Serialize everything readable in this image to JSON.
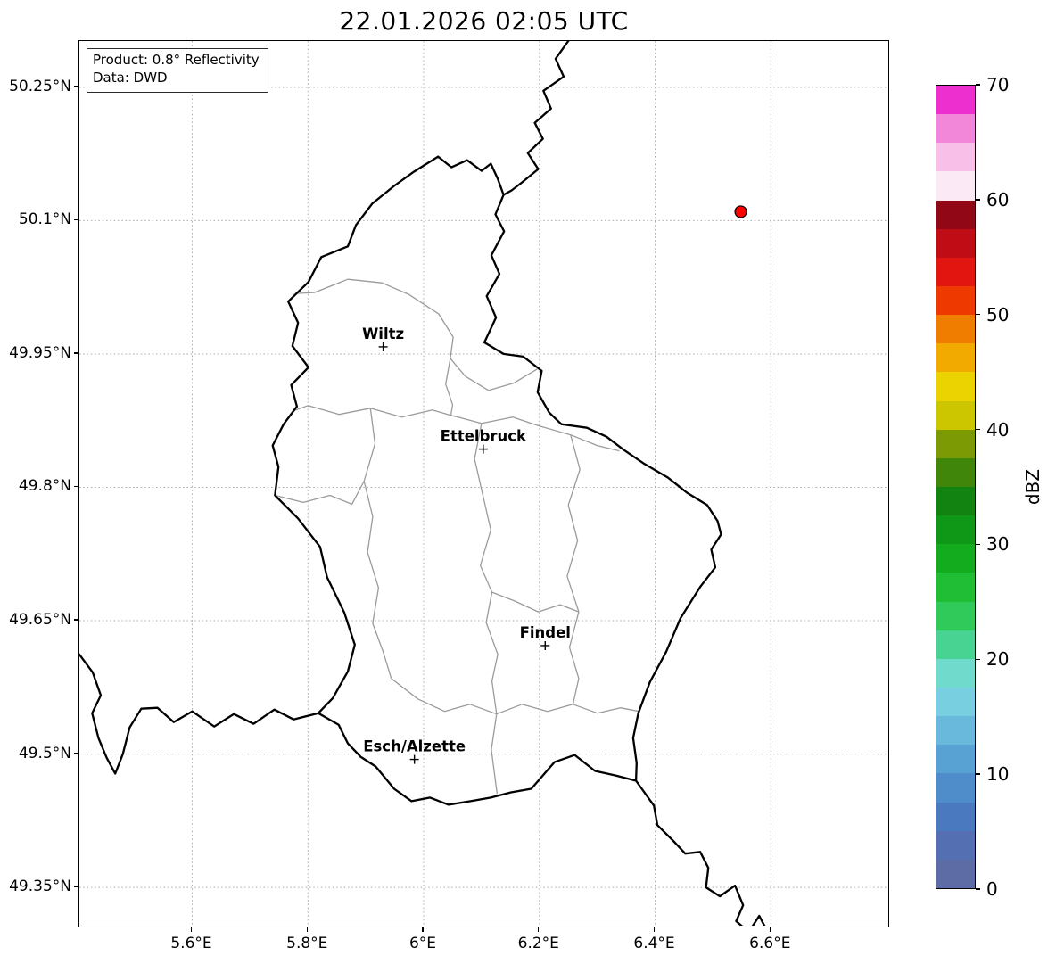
{
  "title": "22.01.2026 02:05 UTC",
  "legend": {
    "product": "Product: 0.8° Reflectivity",
    "source": "Data: DWD"
  },
  "axes": {
    "extent": {
      "lon_min": 5.405,
      "lon_max": 6.803,
      "lat_min": 49.307,
      "lat_max": 50.302
    },
    "x_ticks": [
      {
        "value": 5.6,
        "label": "5.6°E"
      },
      {
        "value": 5.8,
        "label": "5.8°E"
      },
      {
        "value": 6.0,
        "label": "6°E"
      },
      {
        "value": 6.2,
        "label": "6.2°E"
      },
      {
        "value": 6.4,
        "label": "6.4°E"
      },
      {
        "value": 6.6,
        "label": "6.6°E"
      }
    ],
    "y_ticks": [
      {
        "value": 50.25,
        "label": "50.25°N"
      },
      {
        "value": 50.1,
        "label": "50.1°N"
      },
      {
        "value": 49.95,
        "label": "49.95°N"
      },
      {
        "value": 49.8,
        "label": "49.8°N"
      },
      {
        "value": 49.65,
        "label": "49.65°N"
      },
      {
        "value": 49.5,
        "label": "49.5°N"
      },
      {
        "value": 49.35,
        "label": "49.35°N"
      }
    ]
  },
  "map": {
    "cities": [
      {
        "name": "Wiltz",
        "lon": 5.93,
        "lat": 49.958
      },
      {
        "name": "Ettelbruck",
        "lon": 6.103,
        "lat": 49.843
      },
      {
        "name": "Findel",
        "lon": 6.21,
        "lat": 49.622
      },
      {
        "name": "Esch/Alzette",
        "lon": 5.984,
        "lat": 49.494
      }
    ],
    "radar_marker": {
      "lon": 6.548,
      "lat": 50.11,
      "color": "#ff0000"
    },
    "country_borders": [
      {
        "name": "luxembourg",
        "closed": true,
        "points": [
          [
            6.025,
            50.172
          ],
          [
            6.048,
            50.16
          ],
          [
            6.075,
            50.168
          ],
          [
            6.1,
            50.156
          ],
          [
            6.116,
            50.164
          ],
          [
            6.128,
            50.147
          ],
          [
            6.138,
            50.129
          ],
          [
            6.124,
            50.107
          ],
          [
            6.139,
            50.088
          ],
          [
            6.117,
            50.061
          ],
          [
            6.131,
            50.04
          ],
          [
            6.109,
            50.015
          ],
          [
            6.125,
            49.991
          ],
          [
            6.105,
            49.963
          ],
          [
            6.138,
            49.95
          ],
          [
            6.172,
            49.947
          ],
          [
            6.204,
            49.931
          ],
          [
            6.197,
            49.907
          ],
          [
            6.217,
            49.884
          ],
          [
            6.238,
            49.871
          ],
          [
            6.282,
            49.867
          ],
          [
            6.316,
            49.857
          ],
          [
            6.346,
            49.842
          ],
          [
            6.38,
            49.827
          ],
          [
            6.422,
            49.811
          ],
          [
            6.455,
            49.794
          ],
          [
            6.49,
            49.78
          ],
          [
            6.508,
            49.762
          ],
          [
            6.514,
            49.747
          ],
          [
            6.497,
            49.73
          ],
          [
            6.504,
            49.71
          ],
          [
            6.478,
            49.688
          ],
          [
            6.444,
            49.653
          ],
          [
            6.419,
            49.615
          ],
          [
            6.391,
            49.581
          ],
          [
            6.371,
            49.546
          ],
          [
            6.362,
            49.518
          ],
          [
            6.368,
            49.49
          ],
          [
            6.367,
            49.47
          ],
          [
            6.331,
            49.476
          ],
          [
            6.296,
            49.481
          ],
          [
            6.261,
            49.499
          ],
          [
            6.226,
            49.491
          ],
          [
            6.186,
            49.461
          ],
          [
            6.151,
            49.457
          ],
          [
            6.116,
            49.451
          ],
          [
            6.081,
            49.447
          ],
          [
            6.043,
            49.443
          ],
          [
            6.011,
            49.451
          ],
          [
            5.979,
            49.447
          ],
          [
            5.949,
            49.461
          ],
          [
            5.917,
            49.486
          ],
          [
            5.891,
            49.497
          ],
          [
            5.869,
            49.512
          ],
          [
            5.853,
            49.533
          ],
          [
            5.818,
            49.546
          ],
          [
            5.843,
            49.563
          ],
          [
            5.869,
            49.593
          ],
          [
            5.881,
            49.623
          ],
          [
            5.863,
            49.659
          ],
          [
            5.833,
            49.699
          ],
          [
            5.821,
            49.733
          ],
          [
            5.783,
            49.765
          ],
          [
            5.743,
            49.791
          ],
          [
            5.749,
            49.823
          ],
          [
            5.739,
            49.847
          ],
          [
            5.758,
            49.871
          ],
          [
            5.781,
            49.891
          ],
          [
            5.771,
            49.915
          ],
          [
            5.801,
            49.935
          ],
          [
            5.773,
            49.959
          ],
          [
            5.783,
            49.985
          ],
          [
            5.766,
            50.009
          ],
          [
            5.801,
            50.031
          ],
          [
            5.823,
            50.059
          ],
          [
            5.869,
            50.071
          ],
          [
            5.883,
            50.095
          ],
          [
            5.911,
            50.119
          ],
          [
            5.949,
            50.139
          ],
          [
            5.983,
            50.155
          ]
        ]
      },
      {
        "name": "germany-belgium",
        "closed": false,
        "points": [
          [
            6.25,
            50.302
          ],
          [
            6.228,
            50.282
          ],
          [
            6.242,
            50.262
          ],
          [
            6.207,
            50.246
          ],
          [
            6.22,
            50.226
          ],
          [
            6.192,
            50.21
          ],
          [
            6.206,
            50.192
          ],
          [
            6.18,
            50.176
          ],
          [
            6.198,
            50.158
          ],
          [
            6.17,
            50.143
          ],
          [
            6.152,
            50.134
          ],
          [
            6.138,
            50.129
          ]
        ]
      },
      {
        "name": "france-belgium",
        "closed": false,
        "points": [
          [
            5.405,
            49.612
          ],
          [
            5.428,
            49.592
          ],
          [
            5.442,
            49.566
          ],
          [
            5.427,
            49.546
          ],
          [
            5.438,
            49.518
          ],
          [
            5.452,
            49.496
          ],
          [
            5.467,
            49.478
          ],
          [
            5.48,
            49.5
          ],
          [
            5.492,
            49.53
          ],
          [
            5.512,
            49.551
          ],
          [
            5.54,
            49.552
          ],
          [
            5.568,
            49.536
          ],
          [
            5.6,
            49.548
          ],
          [
            5.638,
            49.531
          ],
          [
            5.672,
            49.545
          ],
          [
            5.706,
            49.534
          ],
          [
            5.742,
            49.55
          ],
          [
            5.775,
            49.539
          ],
          [
            5.818,
            49.546
          ]
        ]
      },
      {
        "name": "france-germany",
        "closed": false,
        "points": [
          [
            6.367,
            49.47
          ],
          [
            6.398,
            49.442
          ],
          [
            6.404,
            49.42
          ],
          [
            6.432,
            49.402
          ],
          [
            6.452,
            49.388
          ],
          [
            6.478,
            49.39
          ],
          [
            6.492,
            49.372
          ],
          [
            6.488,
            49.35
          ],
          [
            6.512,
            49.34
          ],
          [
            6.538,
            49.352
          ],
          [
            6.552,
            49.33
          ],
          [
            6.54,
            49.312
          ],
          [
            6.562,
            49.3
          ],
          [
            6.58,
            49.318
          ],
          [
            6.596,
            49.298
          ]
        ]
      }
    ],
    "admin_borders": [
      [
        [
          5.78,
          50.018
        ],
        [
          5.811,
          50.019
        ],
        [
          5.869,
          50.034
        ],
        [
          5.928,
          50.03
        ],
        [
          5.974,
          50.017
        ],
        [
          6.026,
          49.995
        ],
        [
          6.051,
          49.969
        ],
        [
          6.046,
          49.945
        ],
        [
          6.072,
          49.925
        ],
        [
          6.112,
          49.909
        ],
        [
          6.155,
          49.917
        ],
        [
          6.196,
          49.933
        ]
      ],
      [
        [
          5.775,
          49.886
        ],
        [
          5.8,
          49.892
        ],
        [
          5.854,
          49.882
        ],
        [
          5.908,
          49.889
        ],
        [
          5.962,
          49.879
        ],
        [
          6.015,
          49.887
        ],
        [
          6.047,
          49.881
        ],
        [
          6.1,
          49.872
        ],
        [
          6.154,
          49.879
        ],
        [
          6.2,
          49.869
        ],
        [
          6.254,
          49.859
        ],
        [
          6.3,
          49.847
        ],
        [
          6.338,
          49.841
        ]
      ],
      [
        [
          6.046,
          49.945
        ],
        [
          6.038,
          49.916
        ],
        [
          6.05,
          49.893
        ],
        [
          6.047,
          49.881
        ]
      ],
      [
        [
          5.908,
          49.889
        ],
        [
          5.916,
          49.849
        ],
        [
          5.897,
          49.807
        ],
        [
          5.912,
          49.767
        ],
        [
          5.903,
          49.727
        ],
        [
          5.922,
          49.687
        ],
        [
          5.912,
          49.647
        ],
        [
          5.93,
          49.615
        ],
        [
          5.944,
          49.585
        ]
      ],
      [
        [
          5.944,
          49.585
        ],
        [
          5.99,
          49.562
        ],
        [
          6.036,
          49.548
        ],
        [
          6.08,
          49.556
        ],
        [
          6.126,
          49.545
        ],
        [
          6.17,
          49.556
        ],
        [
          6.214,
          49.548
        ],
        [
          6.258,
          49.556
        ],
        [
          6.3,
          49.546
        ],
        [
          6.34,
          49.552
        ],
        [
          6.372,
          49.548
        ]
      ],
      [
        [
          6.1,
          49.872
        ],
        [
          6.088,
          49.832
        ],
        [
          6.102,
          49.792
        ],
        [
          6.116,
          49.752
        ],
        [
          6.098,
          49.712
        ],
        [
          6.118,
          49.682
        ],
        [
          6.108,
          49.648
        ],
        [
          6.128,
          49.612
        ],
        [
          6.118,
          49.582
        ],
        [
          6.126,
          49.545
        ]
      ],
      [
        [
          6.254,
          49.859
        ],
        [
          6.27,
          49.82
        ],
        [
          6.25,
          49.78
        ],
        [
          6.266,
          49.74
        ],
        [
          6.248,
          49.7
        ],
        [
          6.268,
          49.66
        ],
        [
          6.252,
          49.62
        ],
        [
          6.268,
          49.585
        ],
        [
          6.258,
          49.556
        ]
      ],
      [
        [
          6.118,
          49.682
        ],
        [
          6.158,
          49.672
        ],
        [
          6.198,
          49.66
        ],
        [
          6.236,
          49.668
        ],
        [
          6.268,
          49.66
        ]
      ],
      [
        [
          6.126,
          49.545
        ],
        [
          6.117,
          49.505
        ],
        [
          6.127,
          49.455
        ]
      ],
      [
        [
          5.743,
          49.791
        ],
        [
          5.792,
          49.783
        ],
        [
          5.838,
          49.791
        ],
        [
          5.876,
          49.781
        ],
        [
          5.897,
          49.807
        ]
      ]
    ]
  },
  "colorbar": {
    "label": "dBZ",
    "vmin": 0,
    "vmax": 70,
    "ticks": [
      0,
      10,
      20,
      30,
      40,
      50,
      60,
      70
    ],
    "colors_bottom_to_top": [
      "#5d6ca4",
      "#5470b3",
      "#4b79c0",
      "#4f8dca",
      "#58a1d3",
      "#68b9db",
      "#77cfe0",
      "#70dacd",
      "#49d392",
      "#2fca5a",
      "#1fbe34",
      "#14ac1f",
      "#0f9718",
      "#128310",
      "#3f860a",
      "#7c9a04",
      "#ccc600",
      "#ead300",
      "#f2a900",
      "#f07c00",
      "#ee3a00",
      "#e31510",
      "#c00d15",
      "#920715",
      "#fce9f6",
      "#f8bfe9",
      "#f287da",
      "#ee2fd0"
    ]
  }
}
